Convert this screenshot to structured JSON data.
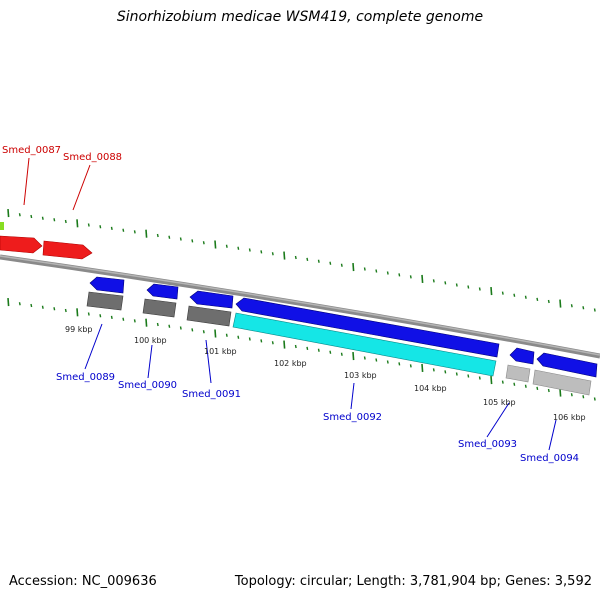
{
  "title": "Sinorhizobium medicae WSM419, complete genome",
  "footer": {
    "accession": "Accession: NC_009636",
    "summary": "Topology: circular; Length: 3,781,904 bp; Genes: 3,592"
  },
  "colors": {
    "forward_gene": "#ee1c1c",
    "reverse_gene": "#1010e6",
    "feature_gray": "#707070",
    "feature_light": "#bdbdbd",
    "feature_cyan": "#15e6e6",
    "backbone": "#808080",
    "tick": "#1a7a1a",
    "label_red": "#cc0000",
    "label_blue": "#0000cc"
  },
  "ticks": [
    {
      "label": "99 kbp"
    },
    {
      "label": "100 kbp"
    },
    {
      "label": "101 kbp"
    },
    {
      "label": "102 kbp"
    },
    {
      "label": "103 kbp"
    },
    {
      "label": "104 kbp"
    },
    {
      "label": "105 kbp"
    },
    {
      "label": "106 kbp"
    }
  ],
  "genes": [
    {
      "name": "Smed_0087",
      "strand": "forward"
    },
    {
      "name": "Smed_0088",
      "strand": "forward"
    },
    {
      "name": "Smed_0089",
      "strand": "reverse"
    },
    {
      "name": "Smed_0090",
      "strand": "reverse"
    },
    {
      "name": "Smed_0091",
      "strand": "reverse"
    },
    {
      "name": "Smed_0092",
      "strand": "reverse"
    },
    {
      "name": "Smed_0093",
      "strand": "reverse"
    },
    {
      "name": "Smed_0094",
      "strand": "reverse"
    }
  ]
}
